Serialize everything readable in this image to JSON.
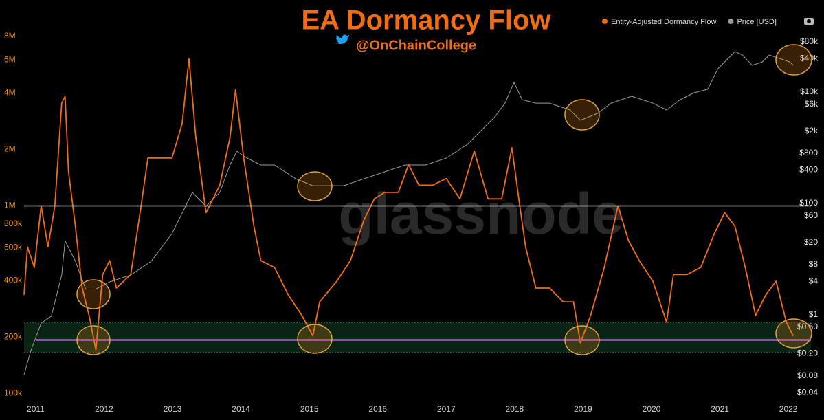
{
  "chart_data": {
    "type": "line",
    "title": "EA Dormancy Flow",
    "subtitle": "@OnChainCollege",
    "watermark": "glassnode",
    "log_scale": true,
    "y2_log_scale": true,
    "xlim": [
      2010.83,
      2022.33
    ],
    "xticks": [
      2011,
      2012,
      2013,
      2014,
      2015,
      2016,
      2017,
      2018,
      2019,
      2020,
      2021,
      2022
    ],
    "ylim": [
      90000,
      11500000
    ],
    "yticks": [
      {
        "value": 8000000,
        "label": "8M"
      },
      {
        "value": 6000000,
        "label": "6M"
      },
      {
        "value": 4000000,
        "label": "4M"
      },
      {
        "value": 2000000,
        "label": "2M"
      },
      {
        "value": 1000000,
        "label": "1M"
      },
      {
        "value": 800000,
        "label": "800k"
      },
      {
        "value": 600000,
        "label": "600k"
      },
      {
        "value": 400000,
        "label": "400k"
      },
      {
        "value": 200000,
        "label": "200k"
      },
      {
        "value": 100000,
        "label": "100k"
      }
    ],
    "y2lim": [
      0.027,
      340000
    ],
    "y2ticks": [
      {
        "value": 80000,
        "label": "$80k"
      },
      {
        "value": 40000,
        "label": "$40k"
      },
      {
        "value": 10000,
        "label": "$10k"
      },
      {
        "value": 6000,
        "label": "$6k"
      },
      {
        "value": 2000,
        "label": "$2k"
      },
      {
        "value": 800,
        "label": "$800"
      },
      {
        "value": 400,
        "label": "$400"
      },
      {
        "value": 100,
        "label": "$100"
      },
      {
        "value": 60,
        "label": "$60"
      },
      {
        "value": 20,
        "label": "$20"
      },
      {
        "value": 8,
        "label": "$8"
      },
      {
        "value": 4,
        "label": "$4"
      },
      {
        "value": 1,
        "label": "$1"
      },
      {
        "value": 0.6,
        "label": "$0.60"
      },
      {
        "value": 0.2,
        "label": "$0.20"
      },
      {
        "value": 0.08,
        "label": "$0.08"
      },
      {
        "value": 0.04,
        "label": "$0.04"
      }
    ],
    "reference_lines": [
      {
        "value": 1000000,
        "color": "#e8e8e8"
      },
      {
        "value": 193000,
        "color": "#9b3fd6"
      }
    ],
    "band": {
      "range": [
        166000,
        238000
      ],
      "color": "#0f3a22"
    },
    "series": [
      {
        "name": "Entity-Adjusted Dormancy Flow",
        "color": "#f26d0f",
        "axis": "y",
        "x": [
          2010.83,
          2010.88,
          2010.98,
          2011.08,
          2011.18,
          2011.28,
          2011.38,
          2011.43,
          2011.48,
          2011.58,
          2011.68,
          2011.78,
          2011.88,
          2011.98,
          2012.08,
          2012.18,
          2012.39,
          2012.54,
          2012.64,
          2012.79,
          2012.99,
          2013.14,
          2013.24,
          2013.34,
          2013.49,
          2013.69,
          2013.84,
          2013.92,
          2014.04,
          2014.19,
          2014.29,
          2014.49,
          2014.69,
          2014.89,
          2015.05,
          2015.15,
          2015.4,
          2015.6,
          2015.8,
          2015.95,
          2016.1,
          2016.3,
          2016.45,
          2016.6,
          2016.8,
          2017.0,
          2017.2,
          2017.41,
          2017.61,
          2017.81,
          2017.96,
          2018.06,
          2018.16,
          2018.31,
          2018.51,
          2018.71,
          2018.86,
          2018.96,
          2019.11,
          2019.31,
          2019.51,
          2019.66,
          2019.82,
          2020.02,
          2020.22,
          2020.32,
          2020.52,
          2020.72,
          2020.92,
          2021.07,
          2021.22,
          2021.37,
          2021.52,
          2021.67,
          2021.82,
          2021.97,
          2022.07
        ],
        "values": [
          336000,
          604000,
          470000,
          1000000,
          604000,
          1000000,
          3530000,
          3840000,
          1520000,
          778000,
          365000,
          261000,
          171000,
          431000,
          511000,
          365000,
          431000,
          1000000,
          1800000,
          1800000,
          1800000,
          2740000,
          6090000,
          2320000,
          920000,
          1290000,
          2320000,
          4170000,
          1800000,
          778000,
          511000,
          470000,
          336000,
          261000,
          203000,
          308000,
          397000,
          511000,
          845000,
          1090000,
          1180000,
          1180000,
          1660000,
          1290000,
          1290000,
          1400000,
          1090000,
          1960000,
          1090000,
          1090000,
          2040000,
          1090000,
          604000,
          365000,
          365000,
          308000,
          308000,
          186000,
          261000,
          470000,
          1000000,
          657000,
          511000,
          397000,
          240000,
          431000,
          431000,
          470000,
          715000,
          920000,
          778000,
          470000,
          261000,
          336000,
          397000,
          240000,
          203000
        ]
      },
      {
        "name": "Price [USD]",
        "color": "#9a9a9a",
        "axis": "y2",
        "x": [
          2010.83,
          2010.93,
          2011.08,
          2011.23,
          2011.38,
          2011.43,
          2011.58,
          2011.73,
          2011.88,
          2012.08,
          2012.39,
          2012.69,
          2012.99,
          2013.19,
          2013.29,
          2013.49,
          2013.69,
          2013.84,
          2013.94,
          2014.09,
          2014.29,
          2014.49,
          2014.8,
          2015.05,
          2015.2,
          2015.5,
          2015.8,
          2016.1,
          2016.4,
          2016.7,
          2017.0,
          2017.31,
          2017.51,
          2017.71,
          2017.86,
          2017.99,
          2018.11,
          2018.31,
          2018.51,
          2018.81,
          2018.96,
          2019.21,
          2019.41,
          2019.71,
          2020.02,
          2020.22,
          2020.42,
          2020.62,
          2020.82,
          2020.97,
          2021.12,
          2021.22,
          2021.33,
          2021.47,
          2021.62,
          2021.72,
          2021.87,
          2022.02,
          2022.07
        ],
        "values": [
          0.084,
          0.23,
          0.71,
          0.95,
          5.2,
          21.5,
          9.2,
          2.9,
          2.9,
          3.9,
          5.2,
          9.2,
          28.6,
          89,
          158,
          89,
          158,
          491,
          867,
          653,
          491,
          491,
          278,
          209,
          209,
          209,
          278,
          370,
          491,
          491,
          653,
          1153,
          2040,
          3600,
          6340,
          14900,
          7310,
          6340,
          6340,
          4780,
          3120,
          4140,
          6340,
          8430,
          6340,
          4780,
          7310,
          9720,
          11200,
          26300,
          40300,
          53500,
          46400,
          30300,
          34900,
          46400,
          40300,
          34900,
          30300
        ]
      }
    ]
  }
}
